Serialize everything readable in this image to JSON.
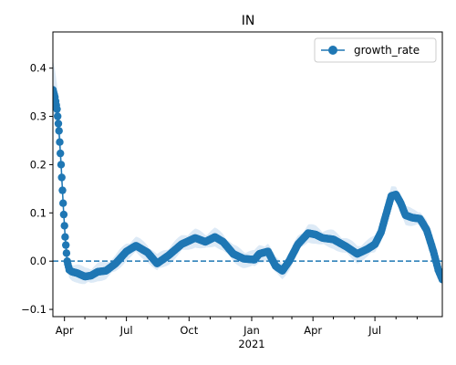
{
  "chart_data": {
    "type": "line",
    "title": "IN",
    "xlabel": "",
    "ylabel": "",
    "x_start": "2020-03-15",
    "x_end": "2021-10-08",
    "ylim": [
      -0.115,
      0.475
    ],
    "yticks": [
      -0.1,
      0.0,
      0.1,
      0.2,
      0.3,
      0.4
    ],
    "ytick_labels": [
      "−0.1",
      "0.0",
      "0.1",
      "0.2",
      "0.3",
      "0.4"
    ],
    "xticks_major": [
      {
        "date": "2020-04-01",
        "label": "Apr"
      },
      {
        "date": "2020-07-01",
        "label": "Jul"
      },
      {
        "date": "2020-10-01",
        "label": "Oct"
      },
      {
        "date": "2021-01-01",
        "label": "Jan"
      },
      {
        "date": "2021-04-01",
        "label": "Apr"
      },
      {
        "date": "2021-07-01",
        "label": "Jul"
      }
    ],
    "year_label": {
      "date": "2021-01-01",
      "label": "2021"
    },
    "xticks_minor": [
      "2020-05-01",
      "2020-06-01",
      "2020-08-01",
      "2020-09-01",
      "2020-11-01",
      "2020-12-01",
      "2021-02-01",
      "2021-03-01",
      "2021-05-01",
      "2021-06-01",
      "2021-08-01",
      "2021-09-01"
    ],
    "reference_line": {
      "y": 0.0,
      "style": "dashed"
    },
    "legend_placement": "upper right",
    "colors": {
      "series": "#1f77b4",
      "band": "#c6dcf0"
    },
    "series": [
      {
        "name": "growth_rate",
        "marker": "circle",
        "keypoints": [
          [
            "2020-03-15",
            0.355
          ],
          [
            "2020-03-18",
            0.34
          ],
          [
            "2020-03-21",
            0.315
          ],
          [
            "2020-03-24",
            0.27
          ],
          [
            "2020-03-27",
            0.2
          ],
          [
            "2020-03-30",
            0.12
          ],
          [
            "2020-04-02",
            0.05
          ],
          [
            "2020-04-05",
            0.0
          ],
          [
            "2020-04-08",
            -0.018
          ],
          [
            "2020-04-12",
            -0.022
          ],
          [
            "2020-04-20",
            -0.025
          ],
          [
            "2020-05-01",
            -0.032
          ],
          [
            "2020-05-10",
            -0.03
          ],
          [
            "2020-05-20",
            -0.022
          ],
          [
            "2020-06-01",
            -0.02
          ],
          [
            "2020-06-15",
            -0.005
          ],
          [
            "2020-07-01",
            0.02
          ],
          [
            "2020-07-15",
            0.032
          ],
          [
            "2020-08-01",
            0.018
          ],
          [
            "2020-08-15",
            -0.005
          ],
          [
            "2020-09-01",
            0.012
          ],
          [
            "2020-09-20",
            0.035
          ],
          [
            "2020-10-10",
            0.048
          ],
          [
            "2020-10-25",
            0.04
          ],
          [
            "2020-11-08",
            0.05
          ],
          [
            "2020-11-20",
            0.04
          ],
          [
            "2020-12-05",
            0.015
          ],
          [
            "2020-12-20",
            0.005
          ],
          [
            "2021-01-05",
            0.003
          ],
          [
            "2021-01-12",
            0.015
          ],
          [
            "2021-01-25",
            0.02
          ],
          [
            "2021-02-05",
            -0.01
          ],
          [
            "2021-02-15",
            -0.02
          ],
          [
            "2021-02-25",
            0.0
          ],
          [
            "2021-03-10",
            0.035
          ],
          [
            "2021-03-25",
            0.058
          ],
          [
            "2021-04-05",
            0.055
          ],
          [
            "2021-04-15",
            0.048
          ],
          [
            "2021-05-01",
            0.045
          ],
          [
            "2021-05-20",
            0.03
          ],
          [
            "2021-06-05",
            0.015
          ],
          [
            "2021-06-20",
            0.025
          ],
          [
            "2021-07-01",
            0.035
          ],
          [
            "2021-07-10",
            0.06
          ],
          [
            "2021-07-18",
            0.1
          ],
          [
            "2021-07-25",
            0.135
          ],
          [
            "2021-08-01",
            0.138
          ],
          [
            "2021-08-08",
            0.12
          ],
          [
            "2021-08-15",
            0.095
          ],
          [
            "2021-08-25",
            0.09
          ],
          [
            "2021-09-05",
            0.088
          ],
          [
            "2021-09-15",
            0.065
          ],
          [
            "2021-09-25",
            0.02
          ],
          [
            "2021-10-02",
            -0.018
          ],
          [
            "2021-10-08",
            -0.038
          ]
        ]
      }
    ]
  }
}
